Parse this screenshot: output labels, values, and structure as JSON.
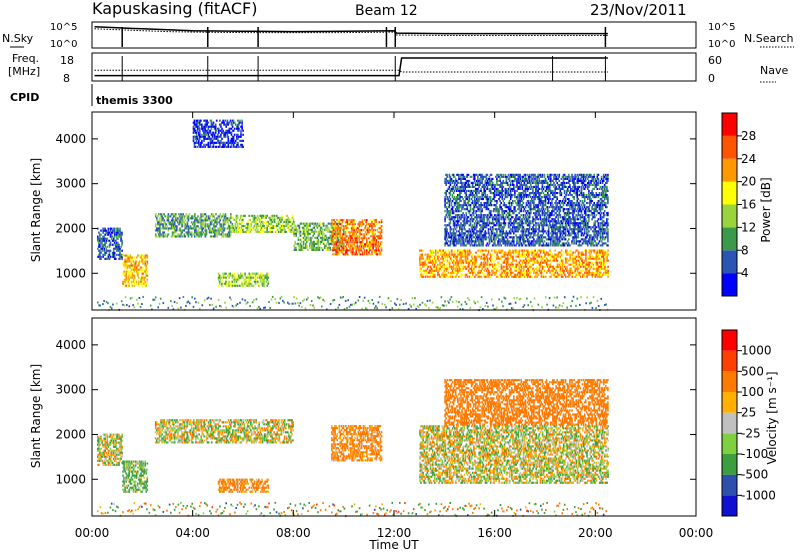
{
  "header": {
    "station": "Kapuskasing (fitACF)",
    "beam": "Beam 12",
    "date": "23/Nov/2011"
  },
  "top_panels": {
    "nsky_label": "N.Sky",
    "nsky_ticks": [
      "10^5",
      "10^0"
    ],
    "nsearch_label": "N.Search",
    "nsearch_ticks": [
      "10^5",
      "10^0"
    ],
    "freq_label": "Freq.",
    "freq_unit": "[MHz]",
    "freq_ticks": [
      "18",
      "8"
    ],
    "nave_label": "Nave",
    "nave_ticks": [
      "60",
      "0"
    ],
    "cpid_label": "CPID",
    "cpid_value": "themis 3300"
  },
  "axes": {
    "x_title": "Time UT",
    "x_ticks": [
      "00:00",
      "04:00",
      "08:00",
      "12:00",
      "16:00",
      "20:00",
      "00:00"
    ],
    "y_title": "Slant Range [km]",
    "y_ticks": [
      "1000",
      "2000",
      "3000",
      "4000"
    ]
  },
  "power_scale": {
    "title": "Power [dB]",
    "labels": [
      "4",
      "8",
      "12",
      "16",
      "20",
      "24",
      "28"
    ],
    "colors": [
      "#0000ff",
      "#2a55b5",
      "#3a9a4a",
      "#9ad43c",
      "#ffff00",
      "#ff9900",
      "#ff5500",
      "#ff0000"
    ]
  },
  "velocity_scale": {
    "title": "Velocity [m s⁻¹]",
    "labels": [
      "1000",
      "500",
      "100",
      "25",
      "-25",
      "-100",
      "-500",
      "-1000"
    ],
    "colors": [
      "#1010d0",
      "#2d4fae",
      "#3c9e3c",
      "#7dd040",
      "#c0c0c0",
      "#ffb000",
      "#ff7a00",
      "#ff4000",
      "#ff0000"
    ]
  },
  "chart_data": [
    {
      "type": "line",
      "title": "N.Sky / N.Search",
      "x_unit": "hours UT",
      "xlim": [
        0,
        24
      ],
      "ylim_log10": [
        0,
        5
      ],
      "series": [
        {
          "name": "N.Sky",
          "x": [
            0.1,
            1,
            2,
            3,
            4,
            6,
            8,
            10,
            12,
            12.1,
            14,
            16,
            18,
            20.5
          ],
          "values_log10": [
            4.2,
            4.0,
            3.8,
            3.6,
            3.4,
            3.3,
            3.2,
            3.3,
            3.4,
            2.9,
            2.8,
            2.8,
            2.8,
            2.8
          ]
        },
        {
          "name": "N.Search",
          "x": [
            0.1,
            1,
            2,
            3,
            4,
            6,
            8,
            10,
            12,
            12.1,
            14,
            16,
            18,
            20.5
          ],
          "values_log10": [
            3.8,
            3.6,
            3.4,
            3.2,
            3.1,
            3.0,
            3.0,
            3.0,
            3.1,
            2.5,
            2.4,
            2.4,
            2.4,
            2.4
          ]
        }
      ]
    },
    {
      "type": "line",
      "title": "Freq. [MHz] / Nave",
      "x_unit": "hours UT",
      "xlim": [
        0,
        24
      ],
      "series": [
        {
          "name": "Freq.",
          "x": [
            0.1,
            12.2,
            12.3,
            20.5
          ],
          "values": [
            10,
            10,
            16.5,
            16.5
          ]
        },
        {
          "name": "Nave",
          "x": [
            0.1,
            12.2,
            12.3,
            20.5
          ],
          "values": [
            24,
            24,
            20,
            20
          ]
        }
      ]
    },
    {
      "type": "heatmap",
      "title": "Power [dB]",
      "xlabel": "Time UT",
      "ylabel": "Slant Range [km]",
      "xlim": [
        0,
        24
      ],
      "ylim": [
        180,
        4600
      ],
      "regions": [
        {
          "t": [
            0.2,
            1.2
          ],
          "range": [
            1300,
            2000
          ],
          "power": 6
        },
        {
          "t": [
            1.2,
            2.2
          ],
          "range": [
            700,
            1400
          ],
          "power": 20
        },
        {
          "t": [
            2.5,
            5.5
          ],
          "range": [
            1800,
            2300
          ],
          "power": 10
        },
        {
          "t": [
            5.5,
            8
          ],
          "range": [
            1900,
            2300
          ],
          "power": 14
        },
        {
          "t": [
            5,
            7
          ],
          "range": [
            700,
            1000
          ],
          "power": 14
        },
        {
          "t": [
            8,
            10
          ],
          "range": [
            1500,
            2100
          ],
          "power": 12
        },
        {
          "t": [
            9.5,
            11.5
          ],
          "range": [
            1400,
            2200
          ],
          "power": 24
        },
        {
          "t": [
            13,
            20.5
          ],
          "range": [
            900,
            1500
          ],
          "power": 22
        },
        {
          "t": [
            14,
            20.5
          ],
          "range": [
            1600,
            3200
          ],
          "power": 6
        },
        {
          "t": [
            4,
            6
          ],
          "range": [
            3800,
            4400
          ],
          "power": 4
        }
      ]
    },
    {
      "type": "heatmap",
      "title": "Velocity [m s⁻¹]",
      "xlabel": "Time UT",
      "ylabel": "Slant Range [km]",
      "xlim": [
        0,
        24
      ],
      "ylim": [
        180,
        4600
      ],
      "regions": [
        {
          "t": [
            0.2,
            1.2
          ],
          "range": [
            1300,
            2000
          ],
          "velocity": 0
        },
        {
          "t": [
            1.2,
            2.2
          ],
          "range": [
            700,
            1400
          ],
          "velocity": 150
        },
        {
          "t": [
            2.5,
            8
          ],
          "range": [
            1800,
            2300
          ],
          "velocity": 0
        },
        {
          "t": [
            5,
            7
          ],
          "range": [
            700,
            1000
          ],
          "velocity": -200
        },
        {
          "t": [
            9.5,
            11.5
          ],
          "range": [
            1400,
            2200
          ],
          "velocity": -200
        },
        {
          "t": [
            13,
            20.5
          ],
          "range": [
            900,
            2200
          ],
          "velocity": 0
        },
        {
          "t": [
            14,
            20.5
          ],
          "range": [
            2200,
            3200
          ],
          "velocity": -300
        }
      ]
    }
  ]
}
